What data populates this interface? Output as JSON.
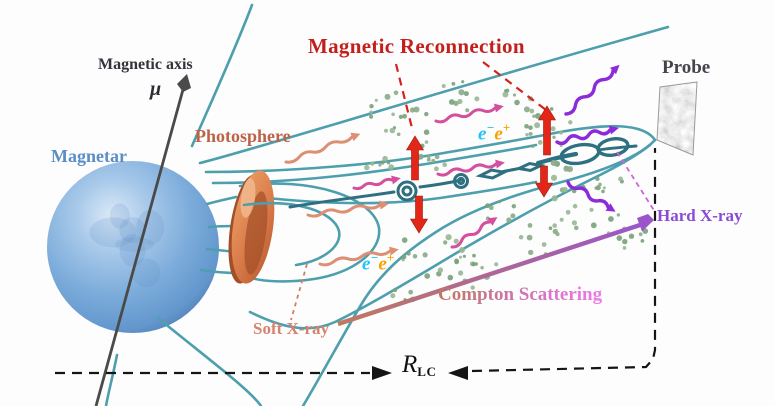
{
  "diagram": {
    "title": "Magnetic Reconnection",
    "labels": {
      "magnetar": "Magnetar",
      "magnetic_axis": "Magnetic axis",
      "mu": "μ",
      "photosphere": "Photosphere",
      "probe": "Probe",
      "hard_xray": "Hard X-ray",
      "soft_xray": "Soft X-ray",
      "compton": "Compton Scattering",
      "rlc_main": "R",
      "rlc_sub": "LC",
      "pair_e": "e",
      "pair_minus": "−",
      "pair_plus": "+"
    },
    "colors": {
      "title_red": "#c3201d",
      "magnetar_label": "#5a8ec5",
      "photosphere_label": "#bc6247",
      "probe_label": "#44444c",
      "hard_xray_label": "#8a4bd4",
      "soft_xray_label": "#d8816c",
      "compton_from": "#c0795f",
      "compton_to": "#ee7ae8",
      "electron": "#1ec3f7",
      "positron": "#f6a400",
      "field_line": "#4d9fad",
      "current_sheet": "#2e6f80",
      "star_blue": "#7babda",
      "photosphere_fill": "#d97b4a",
      "particle_green": "#8aab88",
      "reconnection_arrow": "#e22718",
      "soft_photon": "#dd8f74",
      "mid_photon": "#d4509e",
      "hard_photon": "#8b2bd9",
      "axis_gray": "#4a4a4a",
      "dashed_black": "#151515"
    }
  }
}
